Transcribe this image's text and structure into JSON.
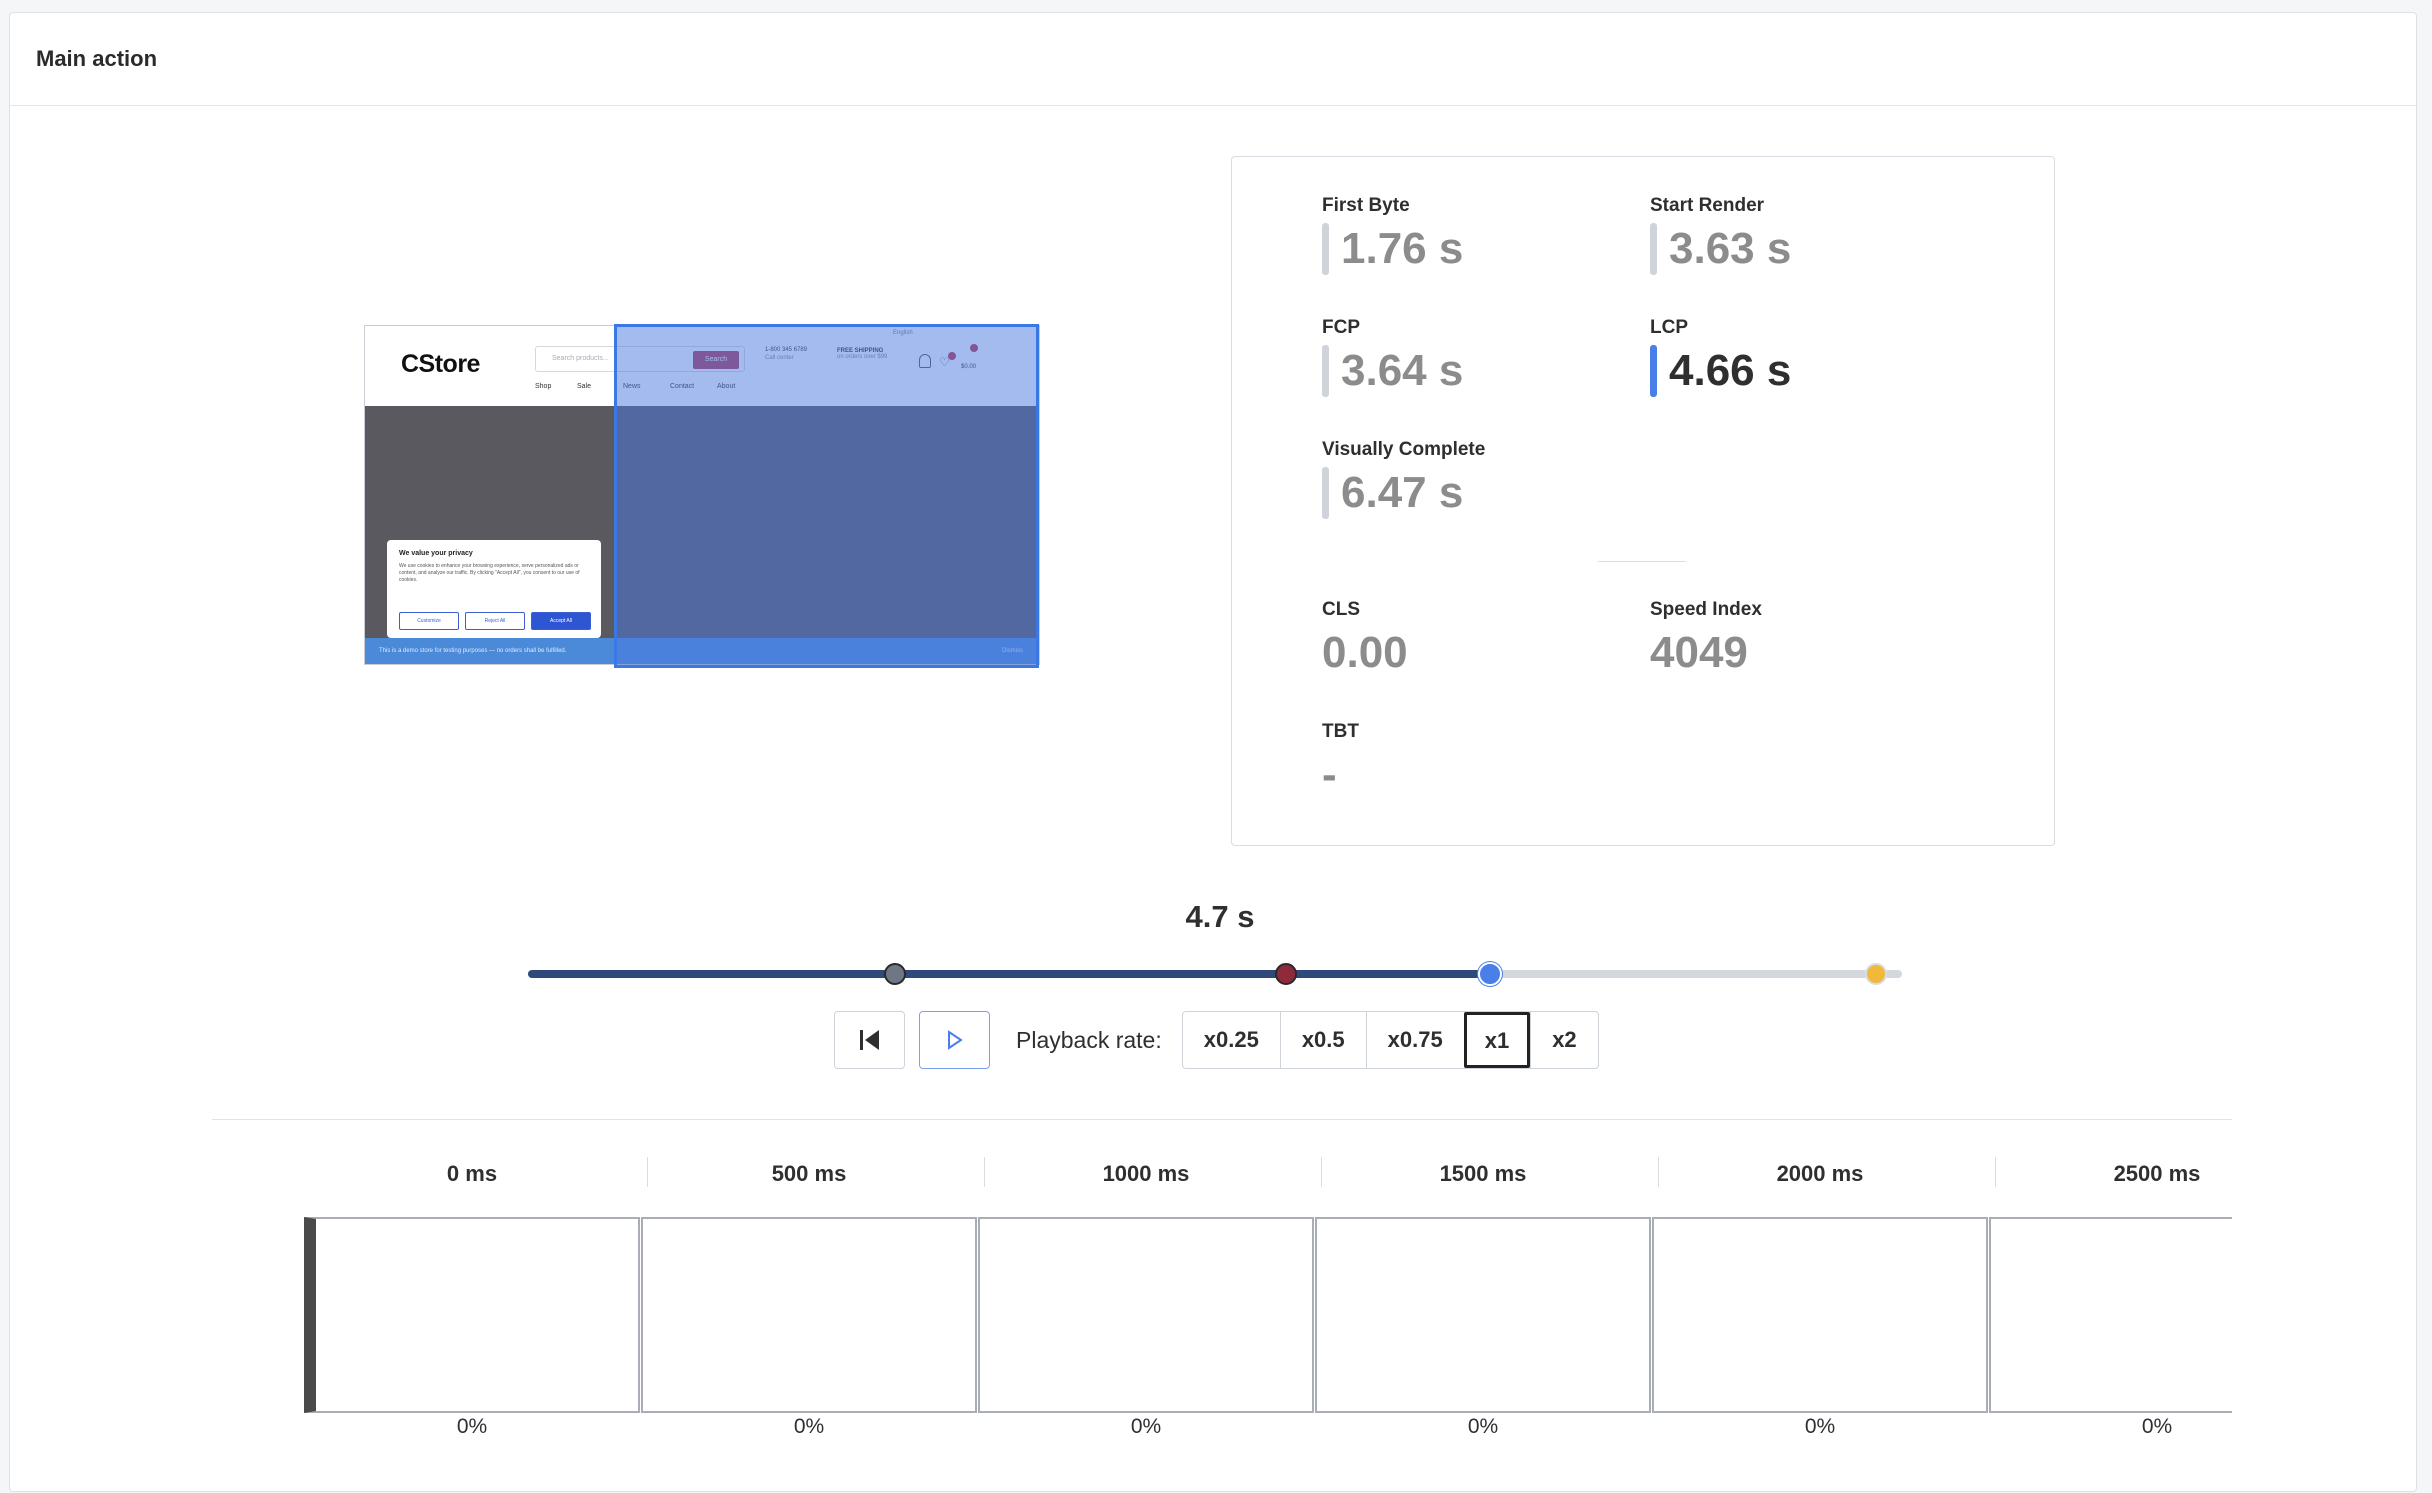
{
  "panel": {
    "title": "Main action"
  },
  "preview": {
    "site_logo": "CStore",
    "search_placeholder": "Search products...",
    "search_button": "Search",
    "nav": [
      "Shop",
      "Sale",
      "News",
      "Contact",
      "About"
    ],
    "phone": "1-800 345 6789",
    "phone_sub": "Call center",
    "shipping": "FREE SHIPPING",
    "shipping_sub": "on orders over $99",
    "language": "English",
    "cart_total": "$0.00",
    "cookie": {
      "title": "We value your privacy",
      "text": "We use cookies to enhance your browsing experience, serve personalized ads or content, and analyze our traffic. By clicking \"Accept All\", you consent to our use of cookies.",
      "customize": "Customize",
      "reject": "Reject All",
      "accept": "Accept All"
    },
    "demo_notice": "This is a demo store for testing purposes — no orders shall be fulfilled.",
    "dismiss": "Dismiss"
  },
  "metrics": {
    "first_byte": {
      "label": "First Byte",
      "value": "1.76 s"
    },
    "start_render": {
      "label": "Start Render",
      "value": "3.63 s"
    },
    "fcp": {
      "label": "FCP",
      "value": "3.64 s"
    },
    "lcp": {
      "label": "LCP",
      "value": "4.66 s"
    },
    "visually_complete": {
      "label": "Visually Complete",
      "value": "6.47 s"
    },
    "cls": {
      "label": "CLS",
      "value": "0.00"
    },
    "speed_index": {
      "label": "Speed Index",
      "value": "4049"
    },
    "tbt": {
      "label": "TBT",
      "value": "-"
    }
  },
  "timeline": {
    "current_time_label": "4.7 s",
    "current_fraction": 0.7,
    "markers": [
      {
        "name": "first-byte",
        "fraction": 0.267,
        "color": "#6f7785"
      },
      {
        "name": "fcp",
        "fraction": 0.552,
        "color": "#8e2a3a"
      },
      {
        "name": "visually-complete",
        "fraction": 0.981,
        "color": "#f0b93a"
      }
    ],
    "thumb_color": "#4a7ee8"
  },
  "playback": {
    "label": "Playback rate:",
    "rates": [
      "x0.25",
      "x0.5",
      "x0.75",
      "x1",
      "x2"
    ],
    "selected": "x1"
  },
  "filmstrip": [
    {
      "time": "0 ms",
      "percent": "0%"
    },
    {
      "time": "500 ms",
      "percent": "0%"
    },
    {
      "time": "1000 ms",
      "percent": "0%"
    },
    {
      "time": "1500 ms",
      "percent": "0%"
    },
    {
      "time": "2000 ms",
      "percent": "0%"
    },
    {
      "time": "2500 ms",
      "percent": "0%"
    }
  ]
}
